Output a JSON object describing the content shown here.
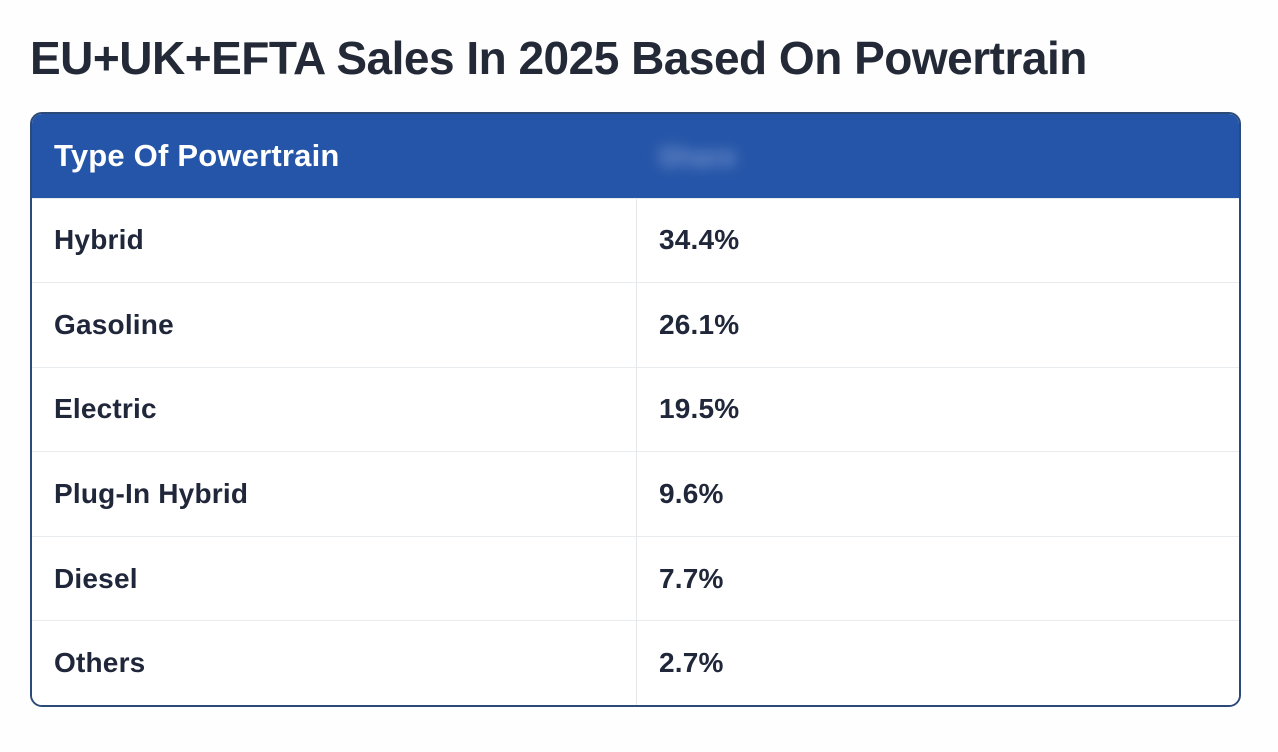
{
  "page": {
    "title": "EU+UK+EFTA Sales In 2025 Based On Powertrain"
  },
  "table": {
    "header": {
      "col1": "Type Of Powertrain",
      "col2_obscured": "Share"
    },
    "rows": [
      {
        "label": "Hybrid",
        "value": "34.4%"
      },
      {
        "label": "Gasoline",
        "value": "26.1%"
      },
      {
        "label": "Electric",
        "value": "19.5%"
      },
      {
        "label": "Plug-In Hybrid",
        "value": "9.6%"
      },
      {
        "label": "Diesel",
        "value": "7.7%"
      },
      {
        "label": "Others",
        "value": "2.7%"
      }
    ]
  },
  "colors": {
    "header_bg": "#2555a8",
    "table_border": "#2c4a78",
    "title_text": "#232936",
    "cell_text": "#20273a",
    "row_divider": "#e9ecef",
    "page_bg": "#fefefe"
  },
  "chart_data": {
    "type": "table",
    "title": "EU+UK+EFTA Sales In 2025 Based On Powertrain",
    "columns": [
      "Type Of Powertrain",
      ""
    ],
    "categories": [
      "Hybrid",
      "Gasoline",
      "Electric",
      "Plug-In Hybrid",
      "Diesel",
      "Others"
    ],
    "values": [
      34.4,
      26.1,
      19.5,
      9.6,
      7.7,
      2.7
    ],
    "unit": "%"
  }
}
